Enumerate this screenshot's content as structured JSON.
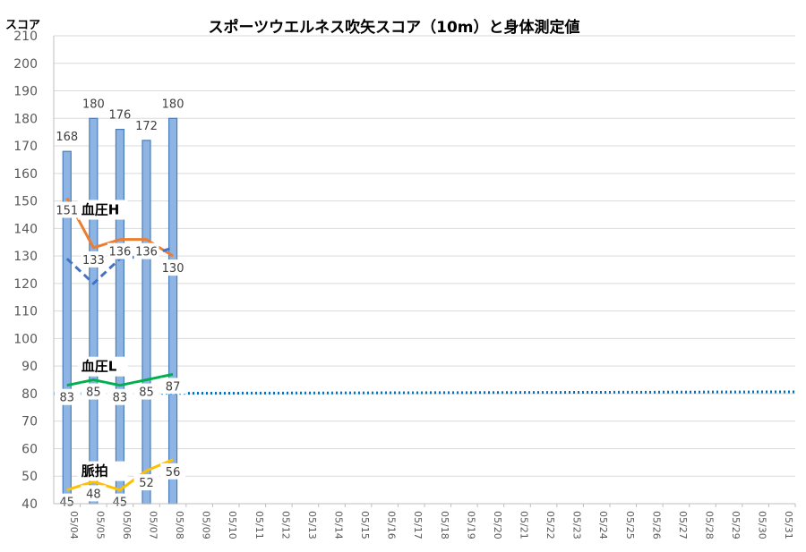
{
  "chart_data": {
    "type": "bar",
    "title": "スポーツウエルネス吹矢スコア（10m）と身体測定値",
    "ylabel": "スコア",
    "xlabel": "",
    "ylim": [
      40,
      210
    ],
    "ytick_step": 10,
    "grid": true,
    "categories": [
      "05/04",
      "05/05",
      "05/06",
      "05/07",
      "05/08",
      "05/09",
      "05/10",
      "05/11",
      "05/12",
      "05/13",
      "05/14",
      "05/15",
      "05/16",
      "05/17",
      "05/18",
      "05/19",
      "05/20",
      "05/21",
      "05/22",
      "05/23",
      "05/24",
      "05/25",
      "05/26",
      "05/27",
      "05/28",
      "05/29",
      "05/30",
      "05/31"
    ],
    "bars": {
      "values": [
        168,
        180,
        176,
        172,
        180
      ],
      "color": "#8db4e2",
      "border": "#4a7ebb"
    },
    "lines": [
      {
        "key": "bp_high",
        "label": "血圧H",
        "values": [
          151,
          133,
          136,
          136,
          130
        ],
        "color": "#ed7d31",
        "dash": false,
        "show_values": true
      },
      {
        "key": "bp_low",
        "label": "血圧L",
        "values": [
          83,
          85,
          83,
          85,
          87
        ],
        "color": "#00b050",
        "dash": false,
        "show_values": true
      },
      {
        "key": "pulse",
        "label": "脈拍",
        "values": [
          45,
          48,
          45,
          52,
          56
        ],
        "color": "#ffc000",
        "dash": false,
        "show_values": true
      },
      {
        "key": "blue_dashed",
        "values": [
          129,
          120,
          129,
          130,
          133
        ],
        "color": "#4472c4",
        "dash": true,
        "show_values": false
      }
    ],
    "reference_line": {
      "value": 80,
      "color": "#0070c0",
      "style": "dotted"
    }
  }
}
